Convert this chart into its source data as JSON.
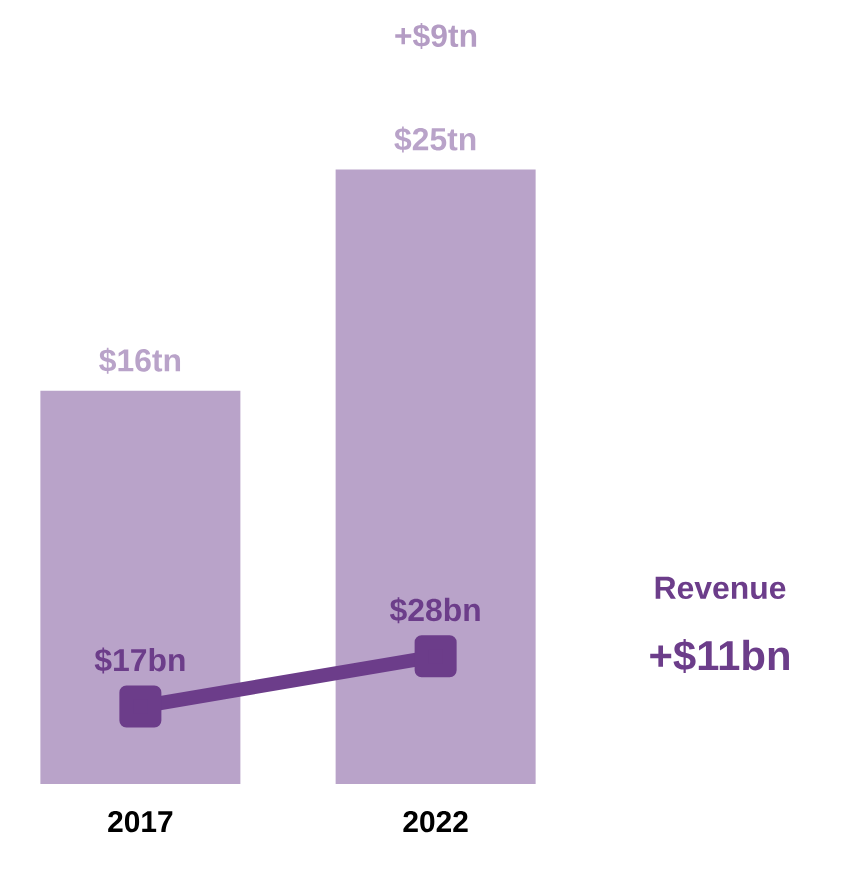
{
  "chart_data": {
    "type": "bar",
    "categories": [
      "2017",
      "2022"
    ],
    "series": [
      {
        "color": "#b9a3c9",
        "values": [
          16,
          25
        ],
        "value_labels": [
          "$16tn",
          "$25tn"
        ]
      },
      {
        "type": "line",
        "axis": "y2",
        "color": "#6c3d8a",
        "values": [
          17,
          28
        ],
        "value_labels": [
          "$17bn",
          "$28bn"
        ]
      }
    ],
    "tick_labels": "x",
    "marker": "square",
    "annotations": [
      "+$9tn",
      "Revenue",
      "+$11bn"
    ]
  }
}
